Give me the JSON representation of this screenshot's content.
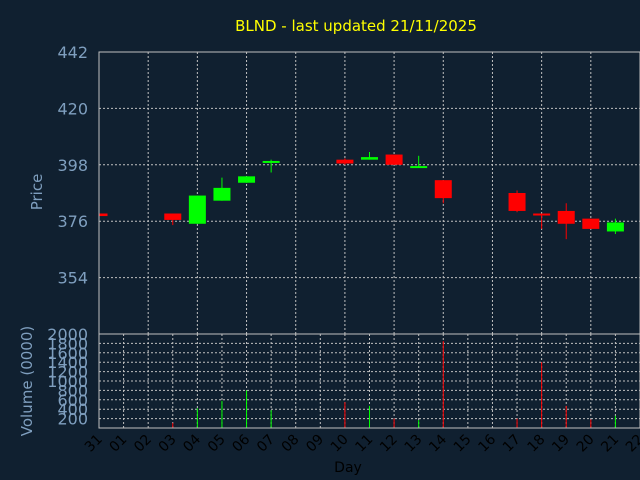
{
  "chart_data": {
    "type": "candlestick",
    "title": "BLND - last updated 21/11/2025",
    "price_axis": {
      "label": "Price",
      "ylim": [
        332,
        442
      ],
      "ticks": [
        354,
        376,
        398,
        420,
        442
      ]
    },
    "volume_axis": {
      "label": "Volume (0000)",
      "ylim": [
        0,
        2000
      ],
      "ticks": [
        200,
        400,
        600,
        800,
        1000,
        1200,
        1400,
        1600,
        1800,
        2000
      ]
    },
    "xlabel": "Day",
    "x_ticks": [
      "31",
      "01",
      "02",
      "03",
      "04",
      "05",
      "06",
      "07",
      "08",
      "09",
      "10",
      "11",
      "12",
      "13",
      "14",
      "15",
      "16",
      "17",
      "18",
      "19",
      "20",
      "21",
      "22"
    ],
    "candles": [
      {
        "day": "31",
        "open": 379,
        "close": 378,
        "high": 379,
        "low": 378,
        "volume": 0
      },
      {
        "day": "03",
        "open": 379,
        "close": 376.5,
        "high": 379,
        "low": 374.5,
        "volume": 110
      },
      {
        "day": "04",
        "open": 375,
        "close": 386,
        "high": 386,
        "low": 375,
        "volume": 420
      },
      {
        "day": "05",
        "open": 384,
        "close": 389,
        "high": 393,
        "low": 384,
        "volume": 580
      },
      {
        "day": "06",
        "open": 391,
        "close": 393.5,
        "high": 393.5,
        "low": 391,
        "volume": 800
      },
      {
        "day": "07",
        "open": 399,
        "close": 399.5,
        "high": 400,
        "low": 395,
        "volume": 380
      },
      {
        "day": "10",
        "open": 400,
        "close": 398.5,
        "high": 400.5,
        "low": 398,
        "volume": 550
      },
      {
        "day": "11",
        "open": 400,
        "close": 401,
        "high": 403,
        "low": 400,
        "volume": 470
      },
      {
        "day": "12",
        "open": 402,
        "close": 398,
        "high": 402,
        "low": 398,
        "volume": 200
      },
      {
        "day": "13",
        "open": 397,
        "close": 397.5,
        "high": 401.5,
        "low": 397,
        "volume": 170
      },
      {
        "day": "14",
        "open": 392,
        "close": 385,
        "high": 392,
        "low": 383,
        "volume": 1850
      },
      {
        "day": "17",
        "open": 387,
        "close": 380,
        "high": 388,
        "low": 379.5,
        "volume": 200
      },
      {
        "day": "18",
        "open": 379,
        "close": 378.5,
        "high": 379,
        "low": 373,
        "volume": 1400
      },
      {
        "day": "19",
        "open": 380,
        "close": 375,
        "high": 383,
        "low": 369,
        "volume": 470
      },
      {
        "day": "20",
        "open": 377,
        "close": 373,
        "high": 377,
        "low": 373,
        "volume": 180
      },
      {
        "day": "21",
        "open": 372,
        "close": 375.5,
        "high": 377,
        "low": 371,
        "volume": 260
      }
    ],
    "colors": {
      "up": "#00ff00",
      "down": "#ff0000",
      "background": "#102030",
      "grid": "#c0c0c0",
      "axis_text": "#7f9fbf",
      "title": "#ffff00"
    },
    "grid": true
  }
}
